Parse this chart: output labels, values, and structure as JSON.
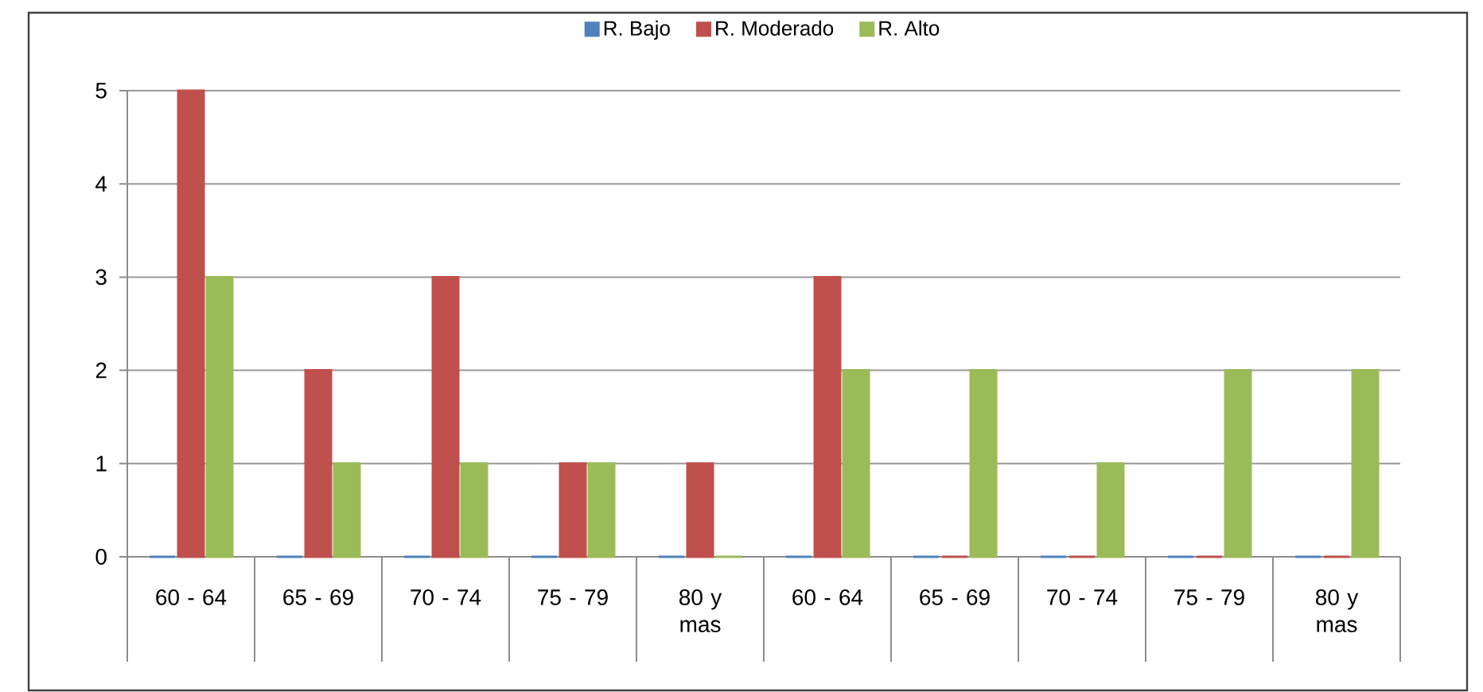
{
  "chart_data": {
    "type": "bar",
    "categories": [
      "60 - 64",
      "65 - 69",
      "70 - 74",
      "75 - 79",
      "80 y mas",
      "60 - 64",
      "65 - 69",
      "70 - 74",
      "75 - 79",
      "80 y mas"
    ],
    "series": [
      {
        "name": "R. Bajo",
        "color": "#4f81bd",
        "values": [
          0,
          0,
          0,
          0,
          0,
          0,
          0,
          0,
          0,
          0
        ]
      },
      {
        "name": "R. Moderado",
        "color": "#c0504d",
        "values": [
          5,
          2,
          3,
          1,
          1,
          3,
          0,
          0,
          0,
          0
        ]
      },
      {
        "name": "R. Alto",
        "color": "#9bbb59",
        "values": [
          3,
          1,
          1,
          1,
          0,
          2,
          2,
          1,
          2,
          2
        ]
      }
    ],
    "ylim": [
      0,
      5
    ],
    "yticks": [
      0,
      1,
      2,
      3,
      4,
      5
    ],
    "grid": "y",
    "legend": "top"
  }
}
